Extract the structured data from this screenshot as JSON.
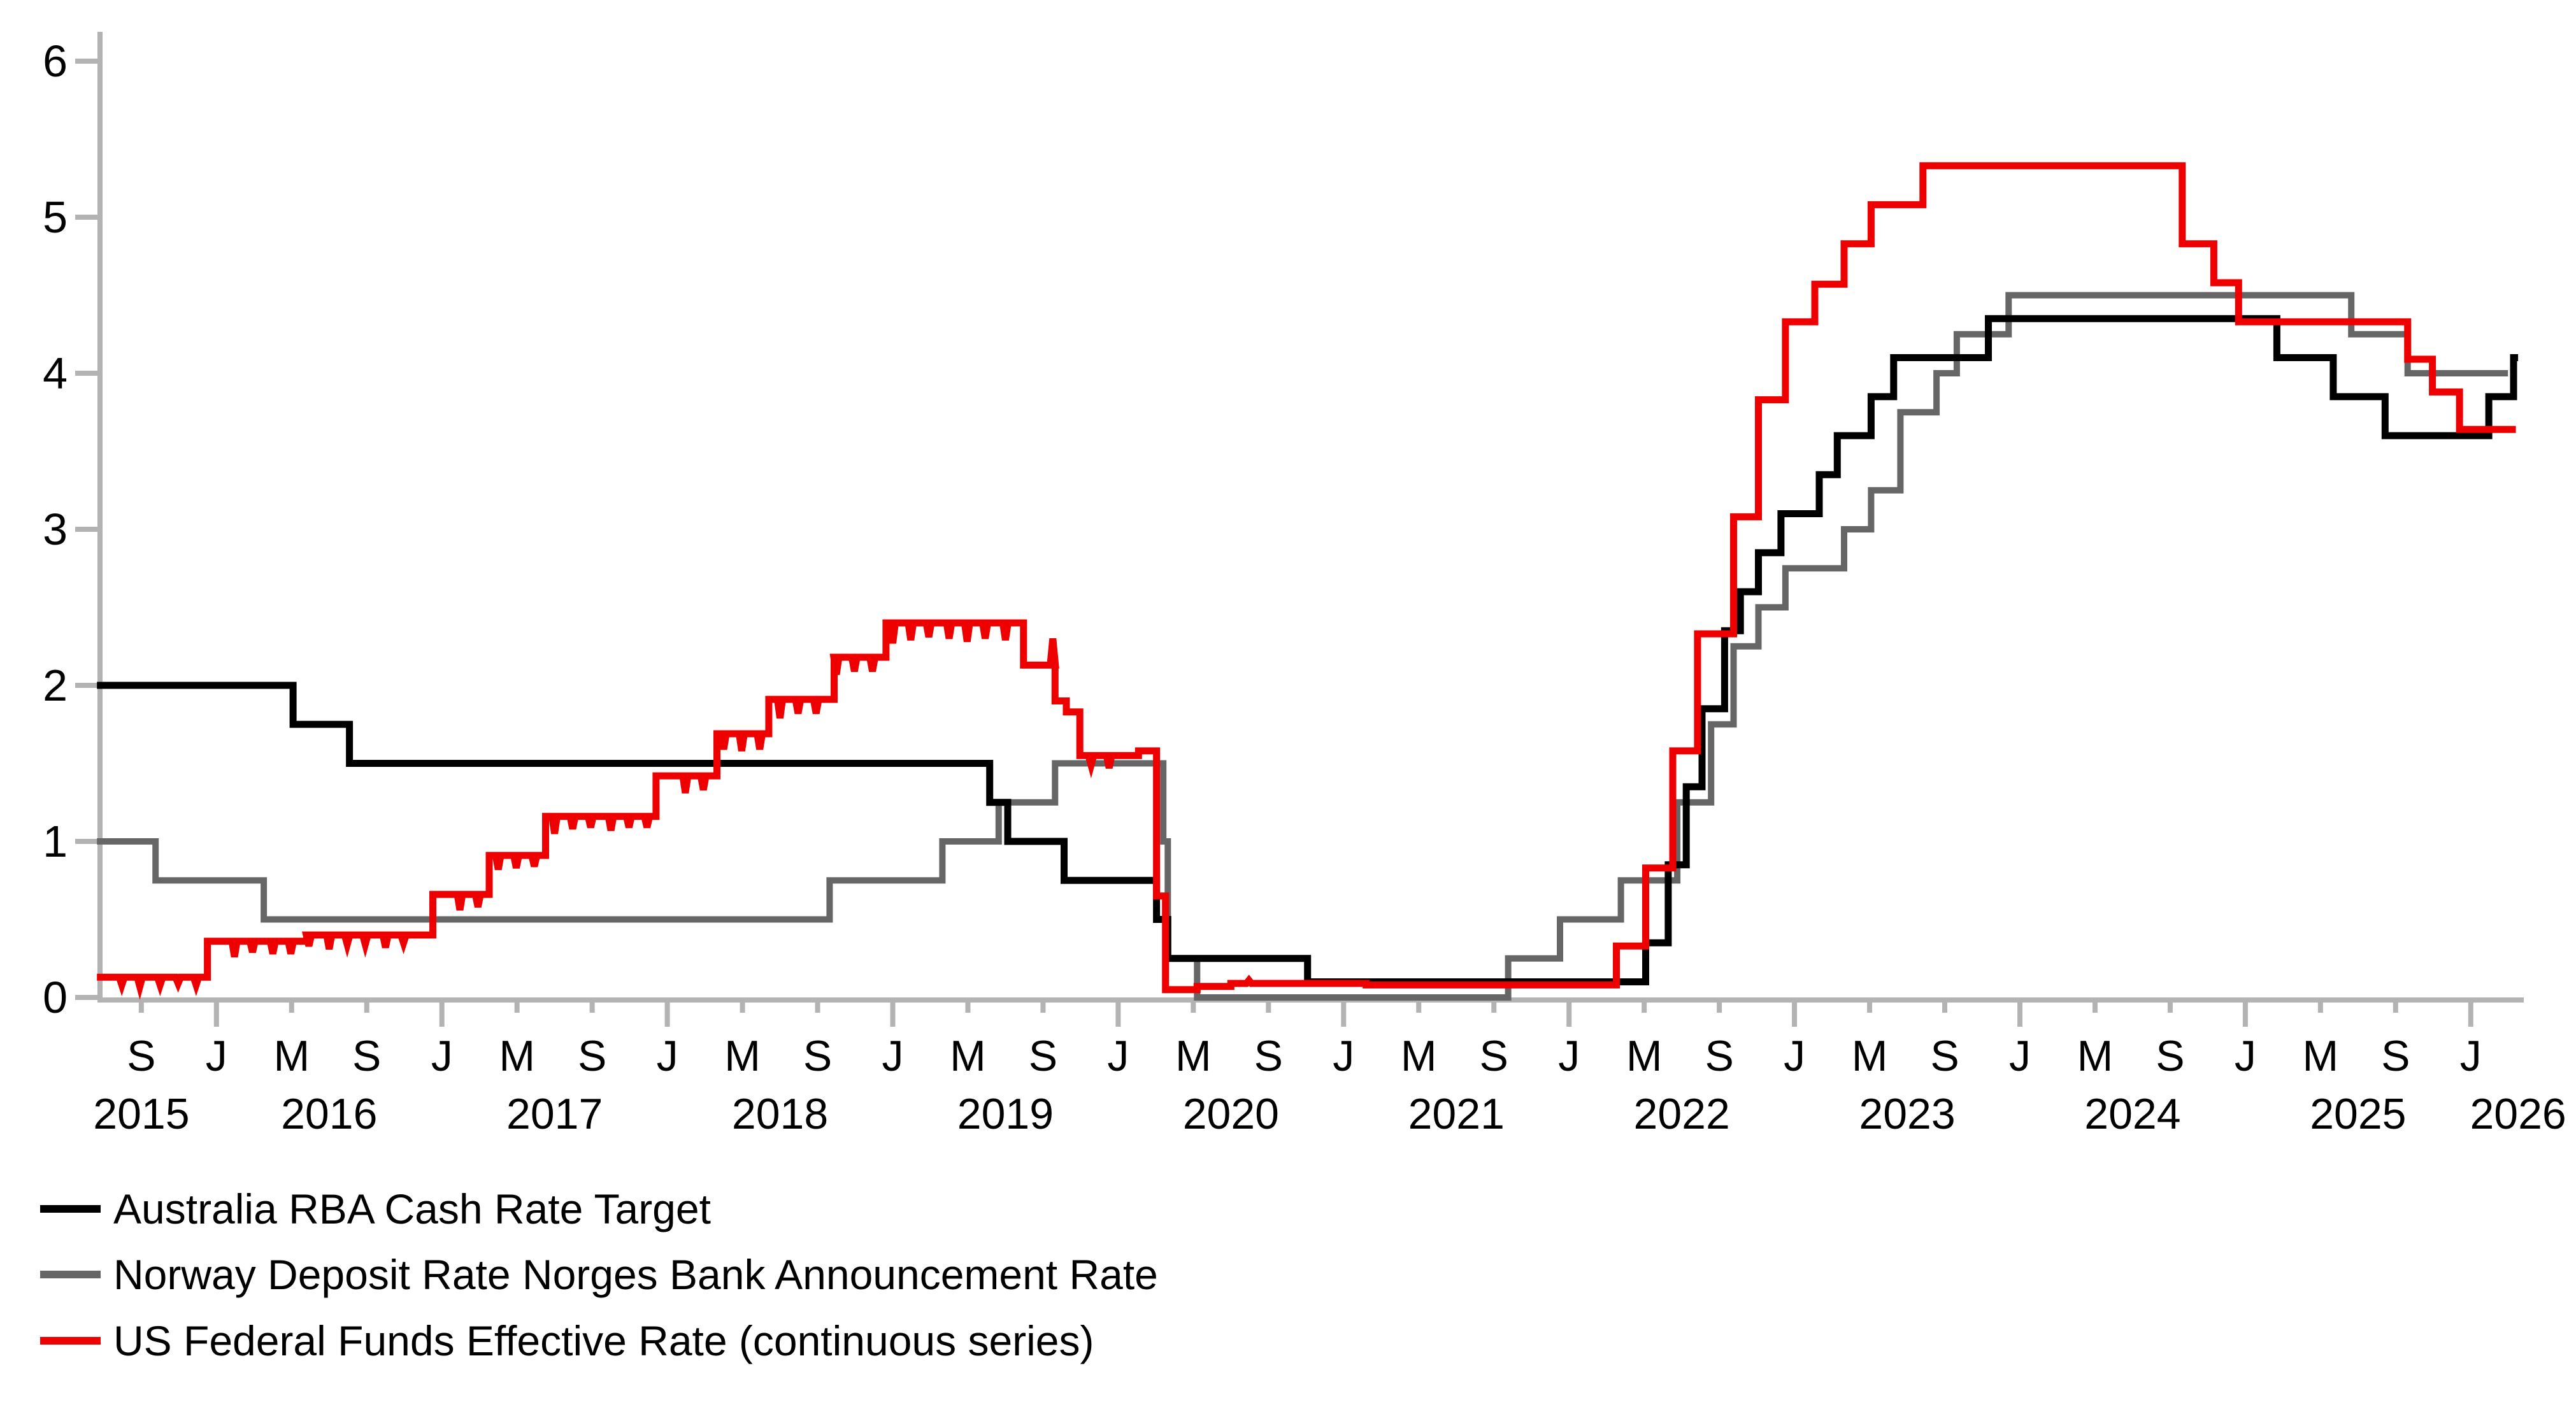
{
  "figure": {
    "background": "#ffffff",
    "axis_color": "#b3b3b3",
    "text_color": "#000000"
  },
  "chart_data": {
    "type": "line",
    "title": "",
    "xlabel": "",
    "ylabel": "",
    "ylim": [
      0,
      6
    ],
    "y_ticks": [
      "0",
      "1",
      "2",
      "3",
      "4",
      "5",
      "6"
    ],
    "grid": false,
    "legend_position": "bottom-left",
    "x_axis": {
      "month_label_start": 2015.6667,
      "month_label_step": 0.33333,
      "month_labels": [
        "S",
        "J",
        "M",
        "S",
        "J",
        "M",
        "S",
        "J",
        "M",
        "S",
        "J",
        "M",
        "S",
        "J",
        "M",
        "S",
        "J",
        "M",
        "S",
        "J",
        "M",
        "S",
        "J",
        "M",
        "S",
        "J",
        "M",
        "S",
        "J",
        "M",
        "S",
        "J"
      ],
      "year_labels": [
        {
          "label": "2015",
          "x": 2015.667
        },
        {
          "label": "2016",
          "x": 2016.5
        },
        {
          "label": "2017",
          "x": 2017.5
        },
        {
          "label": "2018",
          "x": 2018.5
        },
        {
          "label": "2019",
          "x": 2019.5
        },
        {
          "label": "2020",
          "x": 2020.5
        },
        {
          "label": "2021",
          "x": 2021.5
        },
        {
          "label": "2022",
          "x": 2022.5
        },
        {
          "label": "2023",
          "x": 2023.5
        },
        {
          "label": "2024",
          "x": 2024.5
        },
        {
          "label": "2025",
          "x": 2025.5
        },
        {
          "label": "2026",
          "x": 2026.21
        }
      ]
    },
    "series": [
      {
        "name": "Australia RBA Cash Rate Target",
        "color": "#000000",
        "width": 11,
        "end": 2026.21,
        "points": [
          [
            2015.47,
            2.0
          ],
          [
            2016.34,
            1.75
          ],
          [
            2016.59,
            1.5
          ],
          [
            2019.43,
            1.25
          ],
          [
            2019.51,
            1.0
          ],
          [
            2019.76,
            0.75
          ],
          [
            2020.17,
            0.5
          ],
          [
            2020.22,
            0.25
          ],
          [
            2020.84,
            0.1
          ],
          [
            2022.34,
            0.35
          ],
          [
            2022.44,
            0.85
          ],
          [
            2022.52,
            1.35
          ],
          [
            2022.59,
            1.85
          ],
          [
            2022.69,
            2.35
          ],
          [
            2022.76,
            2.6
          ],
          [
            2022.84,
            2.85
          ],
          [
            2022.94,
            3.1
          ],
          [
            2023.11,
            3.35
          ],
          [
            2023.19,
            3.6
          ],
          [
            2023.34,
            3.85
          ],
          [
            2023.44,
            4.1
          ],
          [
            2023.86,
            4.35
          ],
          [
            2025.14,
            4.1
          ],
          [
            2025.39,
            3.85
          ],
          [
            2025.62,
            3.6
          ],
          [
            2026.08,
            3.85
          ],
          [
            2026.19,
            4.1
          ]
        ]
      },
      {
        "name": "Norway Deposit Rate Norges Bank Announcement Rate",
        "color": "#666666",
        "width": 10,
        "end": 2026.165,
        "points": [
          [
            2015.47,
            1.0
          ],
          [
            2015.73,
            0.75
          ],
          [
            2016.21,
            0.5
          ],
          [
            2018.72,
            0.75
          ],
          [
            2019.22,
            1.0
          ],
          [
            2019.47,
            1.25
          ],
          [
            2019.72,
            1.5
          ],
          [
            2020.2,
            1.0
          ],
          [
            2020.22,
            0.25
          ],
          [
            2020.35,
            0.0
          ],
          [
            2021.73,
            0.25
          ],
          [
            2021.96,
            0.5
          ],
          [
            2022.23,
            0.75
          ],
          [
            2022.48,
            1.25
          ],
          [
            2022.63,
            1.75
          ],
          [
            2022.73,
            2.25
          ],
          [
            2022.84,
            2.5
          ],
          [
            2022.96,
            2.75
          ],
          [
            2023.22,
            3.0
          ],
          [
            2023.34,
            3.25
          ],
          [
            2023.47,
            3.75
          ],
          [
            2023.63,
            4.0
          ],
          [
            2023.72,
            4.25
          ],
          [
            2023.95,
            4.5
          ],
          [
            2025.47,
            4.25
          ],
          [
            2025.72,
            4.0
          ]
        ]
      },
      {
        "name": "US Federal Funds Effective Rate (continuous series)",
        "color": "#ee0000",
        "width": 11,
        "end": 2026.2,
        "points": [
          [
            2015.47,
            0.13
          ],
          [
            2015.96,
            0.36
          ],
          [
            2016.4,
            0.4
          ],
          [
            2016.96,
            0.66
          ],
          [
            2017.21,
            0.91
          ],
          [
            2017.46,
            1.16
          ],
          [
            2017.95,
            1.42
          ],
          [
            2018.22,
            1.69
          ],
          [
            2018.45,
            1.91
          ],
          [
            2018.74,
            2.18
          ],
          [
            2018.97,
            2.4
          ],
          [
            2019.58,
            2.13
          ],
          [
            2019.72,
            1.9
          ],
          [
            2019.77,
            1.83
          ],
          [
            2019.83,
            1.55
          ],
          [
            2020.09,
            1.58
          ],
          [
            2020.17,
            0.65
          ],
          [
            2020.21,
            0.05
          ],
          [
            2020.35,
            0.07
          ],
          [
            2020.5,
            0.09
          ],
          [
            2021.1,
            0.08
          ],
          [
            2022.21,
            0.33
          ],
          [
            2022.34,
            0.83
          ],
          [
            2022.46,
            1.58
          ],
          [
            2022.57,
            2.33
          ],
          [
            2022.73,
            3.08
          ],
          [
            2022.84,
            3.83
          ],
          [
            2022.96,
            4.33
          ],
          [
            2023.09,
            4.57
          ],
          [
            2023.22,
            4.83
          ],
          [
            2023.34,
            5.08
          ],
          [
            2023.57,
            5.33
          ],
          [
            2024.72,
            4.83
          ],
          [
            2024.86,
            4.58
          ],
          [
            2024.97,
            4.33
          ],
          [
            2025.72,
            4.09
          ],
          [
            2025.83,
            3.88
          ],
          [
            2025.95,
            3.64
          ]
        ],
        "dips": [
          [
            2015.58,
            0.05
          ],
          [
            2015.66,
            0.06
          ],
          [
            2015.75,
            0.05
          ],
          [
            2015.83,
            0.04
          ],
          [
            2015.91,
            0.05
          ],
          [
            2016.08,
            0.1
          ],
          [
            2016.16,
            0.07
          ],
          [
            2016.25,
            0.08
          ],
          [
            2016.33,
            0.08
          ],
          [
            2016.41,
            0.07
          ],
          [
            2016.5,
            0.09
          ],
          [
            2016.58,
            0.06
          ],
          [
            2016.66,
            0.06
          ],
          [
            2016.75,
            0.08
          ],
          [
            2016.83,
            0.05
          ],
          [
            2017.08,
            0.1
          ],
          [
            2017.16,
            0.08
          ],
          [
            2017.25,
            0.09
          ],
          [
            2017.33,
            0.08
          ],
          [
            2017.41,
            0.07
          ],
          [
            2017.5,
            0.11
          ],
          [
            2017.58,
            0.08
          ],
          [
            2017.66,
            0.07
          ],
          [
            2017.75,
            0.09
          ],
          [
            2017.83,
            0.07
          ],
          [
            2017.91,
            0.07
          ],
          [
            2018.08,
            0.11
          ],
          [
            2018.16,
            0.09
          ],
          [
            2018.25,
            0.1
          ],
          [
            2018.33,
            0.11
          ],
          [
            2018.41,
            0.1
          ],
          [
            2018.5,
            0.12
          ],
          [
            2018.58,
            0.09
          ],
          [
            2018.66,
            0.09
          ],
          [
            2018.75,
            0.11
          ],
          [
            2018.83,
            0.09
          ],
          [
            2018.91,
            0.09
          ],
          [
            2019.0,
            0.13
          ],
          [
            2019.08,
            0.11
          ],
          [
            2019.16,
            0.09
          ],
          [
            2019.25,
            0.1
          ],
          [
            2019.33,
            0.12
          ],
          [
            2019.41,
            0.1
          ],
          [
            2019.5,
            0.11
          ],
          [
            2019.71,
            -0.17
          ],
          [
            2019.88,
            0.06
          ],
          [
            2019.96,
            0.08
          ],
          [
            2020.58,
            -0.02
          ]
        ]
      }
    ]
  },
  "legend": {
    "items": [
      {
        "label": "Australia RBA Cash Rate Target"
      },
      {
        "label": "Norway Deposit Rate Norges Bank Announcement Rate"
      },
      {
        "label": "US Federal Funds Effective Rate (continuous series)"
      }
    ]
  }
}
